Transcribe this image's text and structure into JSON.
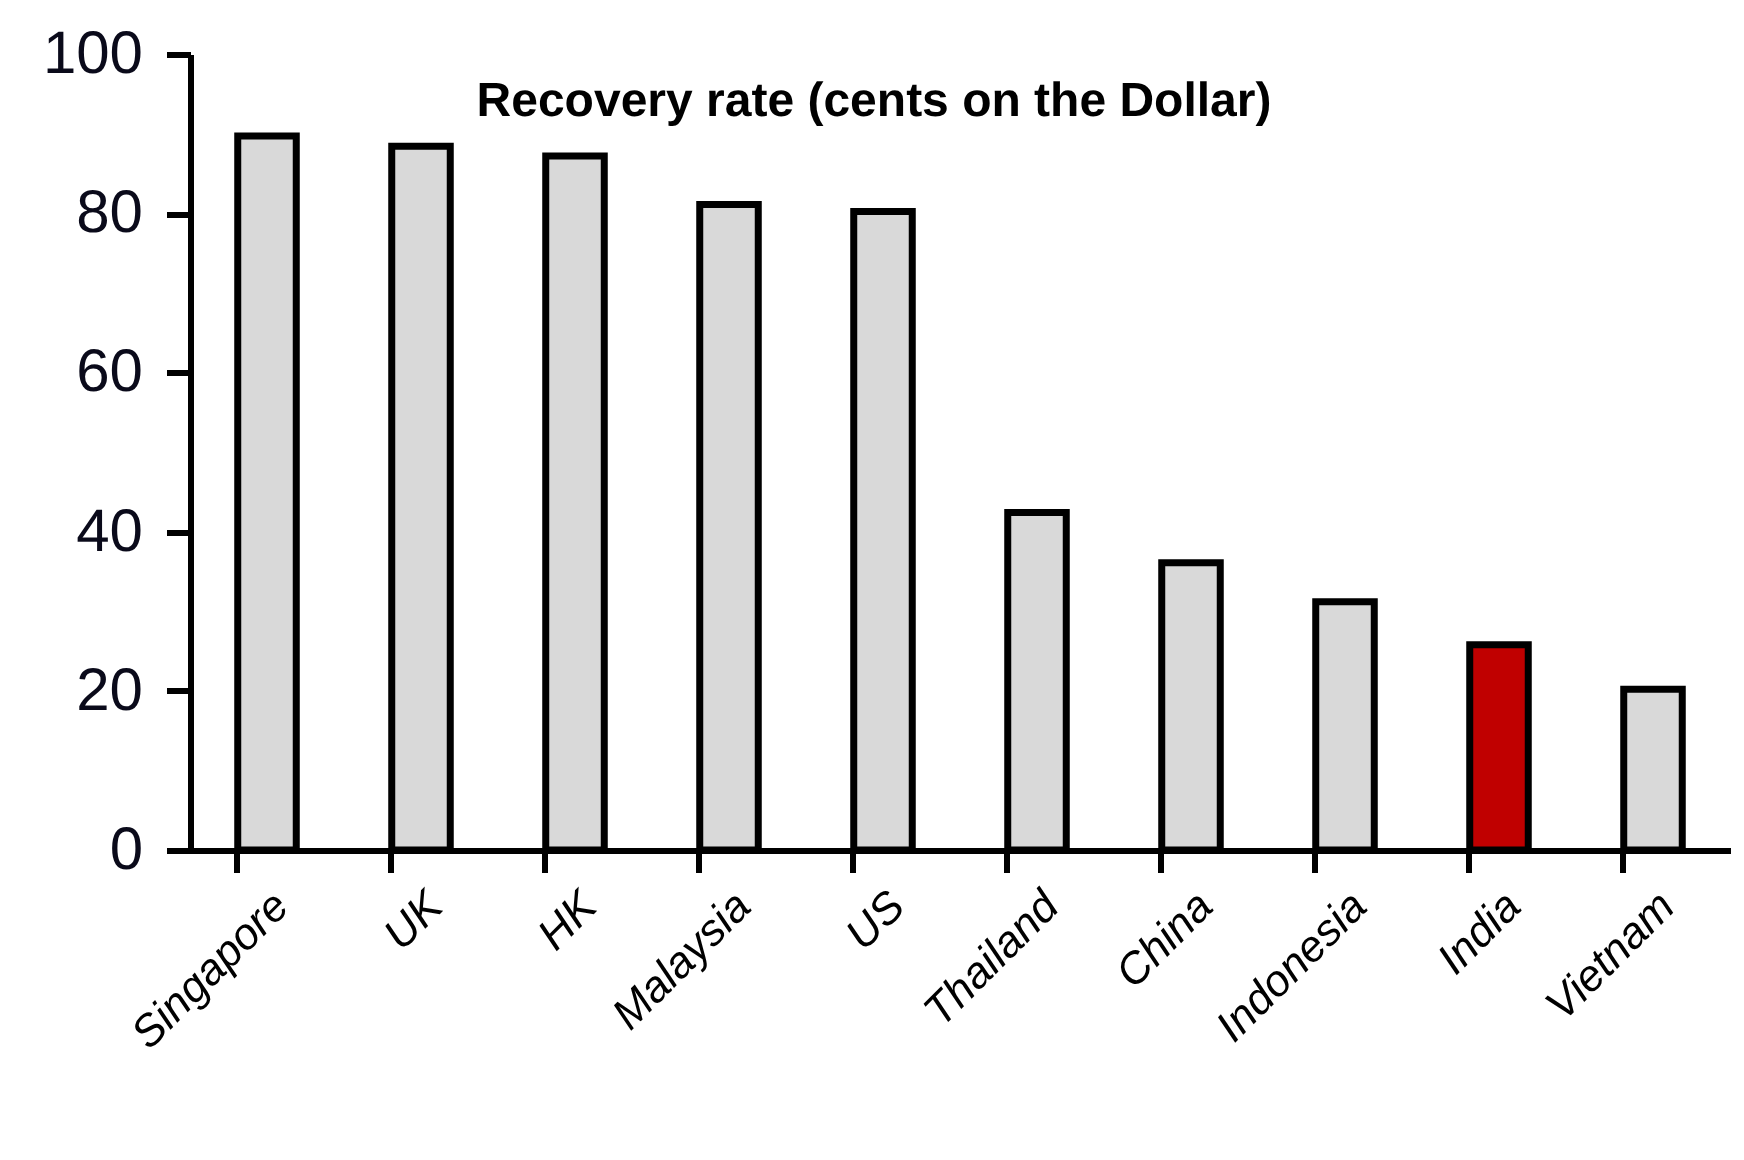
{
  "chart_data": {
    "type": "bar",
    "title": "Recovery rate (cents on the Dollar)",
    "categories": [
      "Singapore",
      "UK",
      "HK",
      "Malaysia",
      "US",
      "Thailand",
      "China",
      "Indonesia",
      "India",
      "Vietnam"
    ],
    "values": [
      89.7,
      88.4,
      87.2,
      81.1,
      80.2,
      42.4,
      36.1,
      31.2,
      25.8,
      20.2
    ],
    "colors": [
      "#d9d9d9",
      "#d9d9d9",
      "#d9d9d9",
      "#d9d9d9",
      "#d9d9d9",
      "#d9d9d9",
      "#d9d9d9",
      "#d9d9d9",
      "#c00000",
      "#d9d9d9"
    ],
    "ylim": [
      0,
      100
    ],
    "yticks": [
      0,
      20,
      40,
      60,
      80,
      100
    ],
    "grid": false
  }
}
